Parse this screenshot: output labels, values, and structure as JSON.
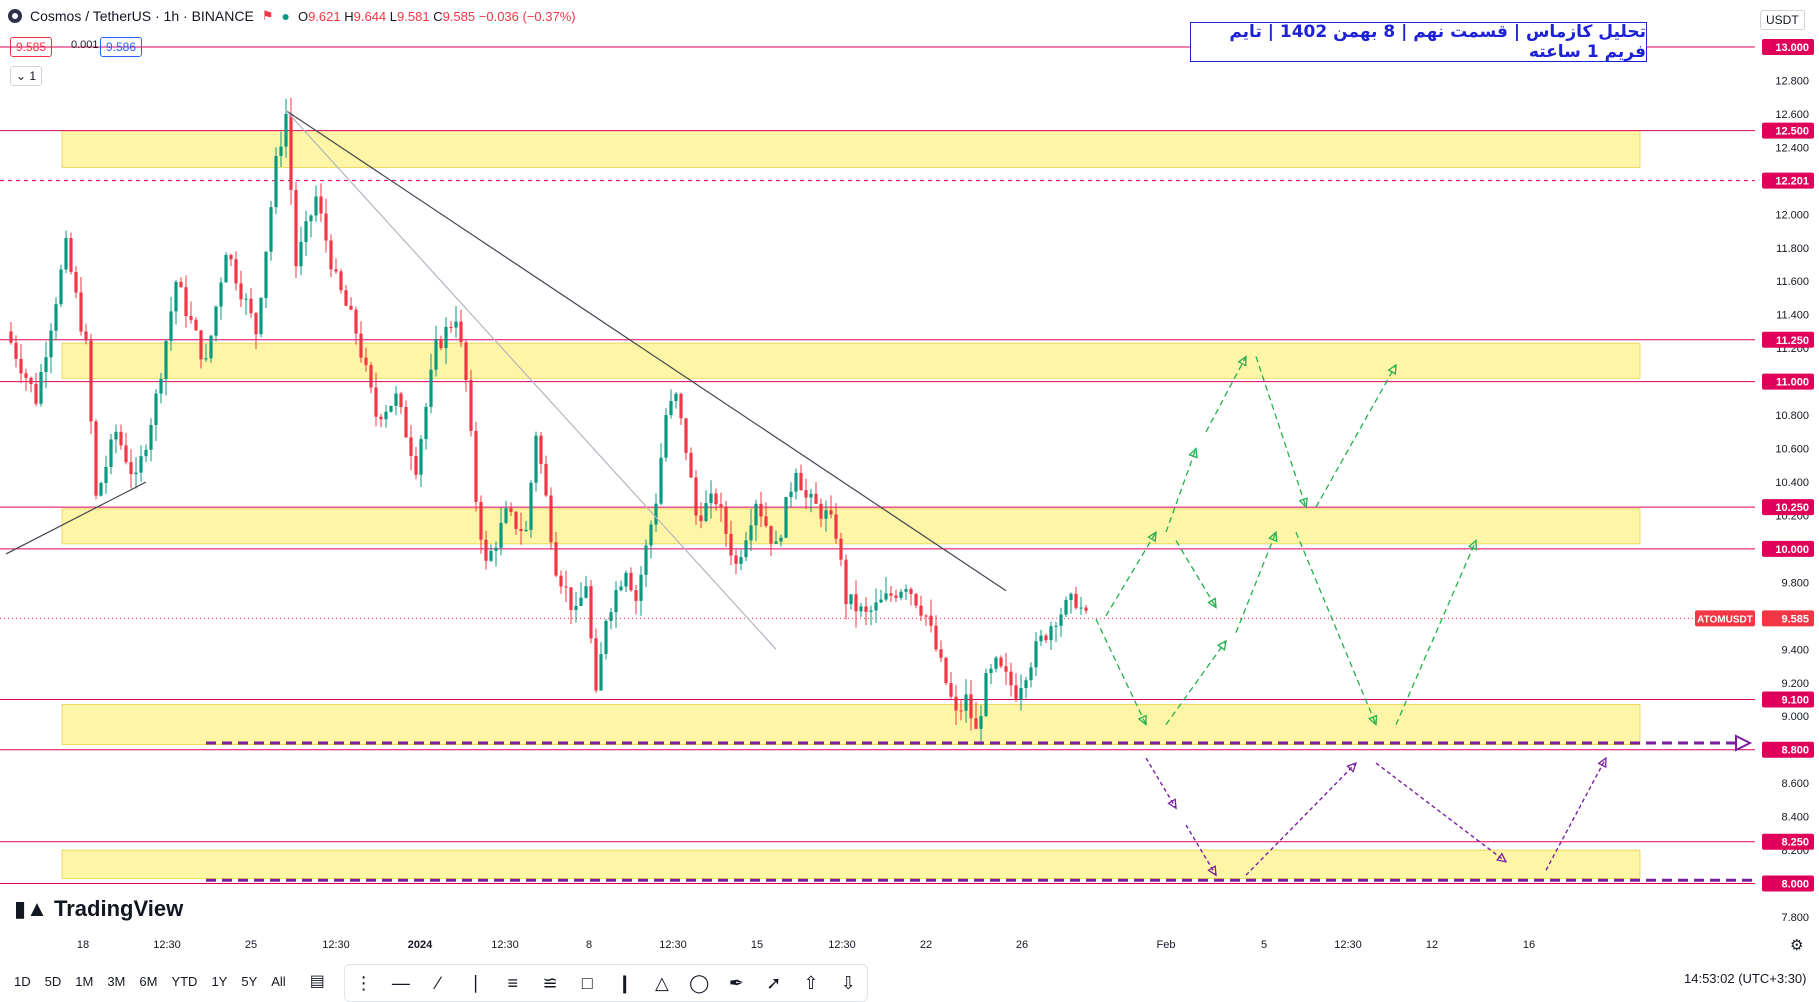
{
  "header": {
    "symbol": "Cosmos / TetherUS · 1h · BINANCE",
    "o_label": "O",
    "o": "9.621",
    "h_label": "H",
    "h": "9.644",
    "l_label": "L",
    "l": "9.581",
    "c_label": "C",
    "c": "9.585",
    "change": "−0.036 (−0.37%)",
    "bid": "9.585",
    "spread": "0.001",
    "ask": "9.586",
    "interval_btn": "1"
  },
  "title_box": "تحلیل کازماس | قسمت نهم | 8 بهمن 1402 | تایم فریم 1 ساعته",
  "currency": "USDT",
  "brand": "TradingView",
  "timeframes": [
    "1D",
    "5D",
    "1M",
    "3M",
    "6M",
    "YTD",
    "1Y",
    "5Y",
    "All"
  ],
  "clock": "14:53:02 (UTC+3:30)",
  "colors": {
    "up": "#089981",
    "down": "#f23645",
    "level": "#e0005a",
    "zone": "#fff59d",
    "projection_green": "#22b14c",
    "projection_purple": "#7b1fa2"
  },
  "chart_data": {
    "type": "candlestick",
    "symbol_label": "ATOMUSDT",
    "last_price": 9.585,
    "ylim": [
      7.7,
      13.15
    ],
    "y_ticks": [
      7.8,
      8.0,
      8.2,
      8.4,
      8.6,
      8.8,
      9.0,
      9.2,
      9.4,
      9.6,
      9.8,
      10.0,
      10.2,
      10.4,
      10.6,
      10.8,
      11.0,
      11.2,
      11.4,
      11.6,
      11.8,
      12.0,
      12.2,
      12.4,
      12.6,
      12.8,
      13.0
    ],
    "y_tick_labels": [
      "7.800",
      "8.000",
      "8.200",
      "8.400",
      "8.600",
      "8.800",
      "9.000",
      "9.200",
      "9.400",
      "9.600",
      "9.800",
      "10.000",
      "10.200",
      "10.400",
      "10.600",
      "10.800",
      "11.000",
      "11.200",
      "11.400",
      "11.600",
      "11.800",
      "12.000",
      "12.200",
      "12.400",
      "12.600",
      "12.800",
      "13.000"
    ],
    "x_ticks": [
      "18",
      "12:30",
      "25",
      "12:30",
      "2024",
      "12:30",
      "8",
      "12:30",
      "15",
      "12:30",
      "22",
      "26",
      "Feb",
      "5",
      "12:30",
      "12",
      "16"
    ],
    "levels": [
      {
        "value": 13.0,
        "label": "13.000",
        "style": "solid"
      },
      {
        "value": 12.5,
        "label": "12.500",
        "style": "solid"
      },
      {
        "value": 12.201,
        "label": "12.201",
        "style": "dashed"
      },
      {
        "value": 11.25,
        "label": "11.250",
        "style": "solid"
      },
      {
        "value": 11.0,
        "label": "11.000",
        "style": "solid"
      },
      {
        "value": 10.25,
        "label": "10.250",
        "style": "solid"
      },
      {
        "value": 10.0,
        "label": "10.000",
        "style": "solid"
      },
      {
        "value": 9.1,
        "label": "9.100",
        "style": "solid"
      },
      {
        "value": 8.8,
        "label": "8.800",
        "style": "solid"
      },
      {
        "value": 8.25,
        "label": "8.250",
        "style": "solid"
      },
      {
        "value": 8.0,
        "label": "8.000",
        "style": "solid"
      }
    ],
    "zones": [
      {
        "from": 12.28,
        "to": 12.5
      },
      {
        "from": 11.02,
        "to": 11.23
      },
      {
        "from": 10.03,
        "to": 10.24
      },
      {
        "from": 8.83,
        "to": 9.07
      },
      {
        "from": 8.03,
        "to": 8.2
      }
    ],
    "price_path": [
      [
        0,
        11.3
      ],
      [
        3,
        10.9
      ],
      [
        6,
        11.8
      ],
      [
        8,
        11.2
      ],
      [
        9,
        10.3
      ],
      [
        11,
        10.7
      ],
      [
        13,
        10.4
      ],
      [
        15,
        10.9
      ],
      [
        17,
        11.6
      ],
      [
        20,
        11.1
      ],
      [
        22,
        11.8
      ],
      [
        25,
        11.3
      ],
      [
        27,
        12.3
      ],
      [
        28,
        12.6
      ],
      [
        29,
        11.7
      ],
      [
        31,
        12.1
      ],
      [
        33,
        11.6
      ],
      [
        35,
        11.3
      ],
      [
        37,
        10.8
      ],
      [
        39,
        10.9
      ],
      [
        41,
        10.5
      ],
      [
        43,
        11.2
      ],
      [
        45,
        11.4
      ],
      [
        46,
        11.0
      ],
      [
        47,
        10.3
      ],
      [
        48,
        9.9
      ],
      [
        50,
        10.2
      ],
      [
        52,
        10.1
      ],
      [
        53,
        10.7
      ],
      [
        55,
        9.9
      ],
      [
        57,
        9.6
      ],
      [
        58,
        9.8
      ],
      [
        59,
        9.1
      ],
      [
        60,
        9.6
      ],
      [
        62,
        9.9
      ],
      [
        63,
        9.7
      ],
      [
        65,
        10.3
      ],
      [
        66,
        10.8
      ],
      [
        67,
        10.9
      ],
      [
        68,
        10.6
      ],
      [
        69,
        10.2
      ],
      [
        71,
        10.3
      ],
      [
        73,
        9.9
      ],
      [
        75,
        10.3
      ],
      [
        77,
        10.0
      ],
      [
        79,
        10.5
      ],
      [
        80,
        10.3
      ],
      [
        82,
        10.2
      ],
      [
        83,
        10.1
      ],
      [
        84,
        9.7
      ],
      [
        86,
        9.6
      ],
      [
        88,
        9.7
      ],
      [
        90,
        9.8
      ],
      [
        92,
        9.6
      ],
      [
        94,
        9.2
      ],
      [
        95,
        9.0
      ],
      [
        96,
        9.1
      ],
      [
        97,
        8.9
      ],
      [
        98,
        9.2
      ],
      [
        99,
        9.3
      ],
      [
        101,
        9.15
      ],
      [
        103,
        9.4
      ],
      [
        105,
        9.6
      ],
      [
        107,
        9.7
      ],
      [
        108,
        9.58
      ]
    ],
    "trendlines": [
      {
        "from": [
          28,
          12.62
        ],
        "to": [
          100,
          9.75
        ]
      },
      {
        "from": [
          28,
          12.62
        ],
        "to": [
          77,
          9.4
        ]
      },
      {
        "from": [
          0,
          9.97
        ],
        "to": [
          14,
          10.4
        ]
      }
    ],
    "projections_green": [
      [
        [
          110,
          9.6
        ],
        [
          115,
          10.1
        ]
      ],
      [
        [
          116,
          10.1
        ],
        [
          119,
          10.6
        ]
      ],
      [
        [
          120,
          10.7
        ],
        [
          124,
          11.15
        ]
      ],
      [
        [
          125,
          11.15
        ],
        [
          130,
          10.25
        ]
      ],
      [
        [
          131,
          10.25
        ],
        [
          139,
          11.1
        ]
      ],
      [
        [
          109,
          9.58
        ],
        [
          114,
          8.95
        ]
      ],
      [
        [
          116,
          8.95
        ],
        [
          122,
          9.45
        ]
      ],
      [
        [
          123,
          9.5
        ],
        [
          127,
          10.1
        ]
      ],
      [
        [
          117,
          10.05
        ],
        [
          121,
          9.65
        ]
      ],
      [
        [
          129,
          10.1
        ],
        [
          137,
          8.95
        ]
      ],
      [
        [
          139,
          8.95
        ],
        [
          147,
          10.05
        ]
      ]
    ],
    "projections_purple": [
      [
        [
          114,
          8.75
        ],
        [
          117,
          8.45
        ]
      ],
      [
        [
          118,
          8.35
        ],
        [
          121,
          8.05
        ]
      ],
      [
        [
          124,
          8.05
        ],
        [
          135,
          8.72
        ]
      ],
      [
        [
          137,
          8.72
        ],
        [
          150,
          8.13
        ]
      ],
      [
        [
          154,
          8.08
        ],
        [
          160,
          8.75
        ]
      ]
    ],
    "support_arrows": [
      {
        "from": 20,
        "to": 173,
        "value": 8.84
      },
      {
        "from": 20,
        "to": 175,
        "value": 8.02
      }
    ]
  }
}
